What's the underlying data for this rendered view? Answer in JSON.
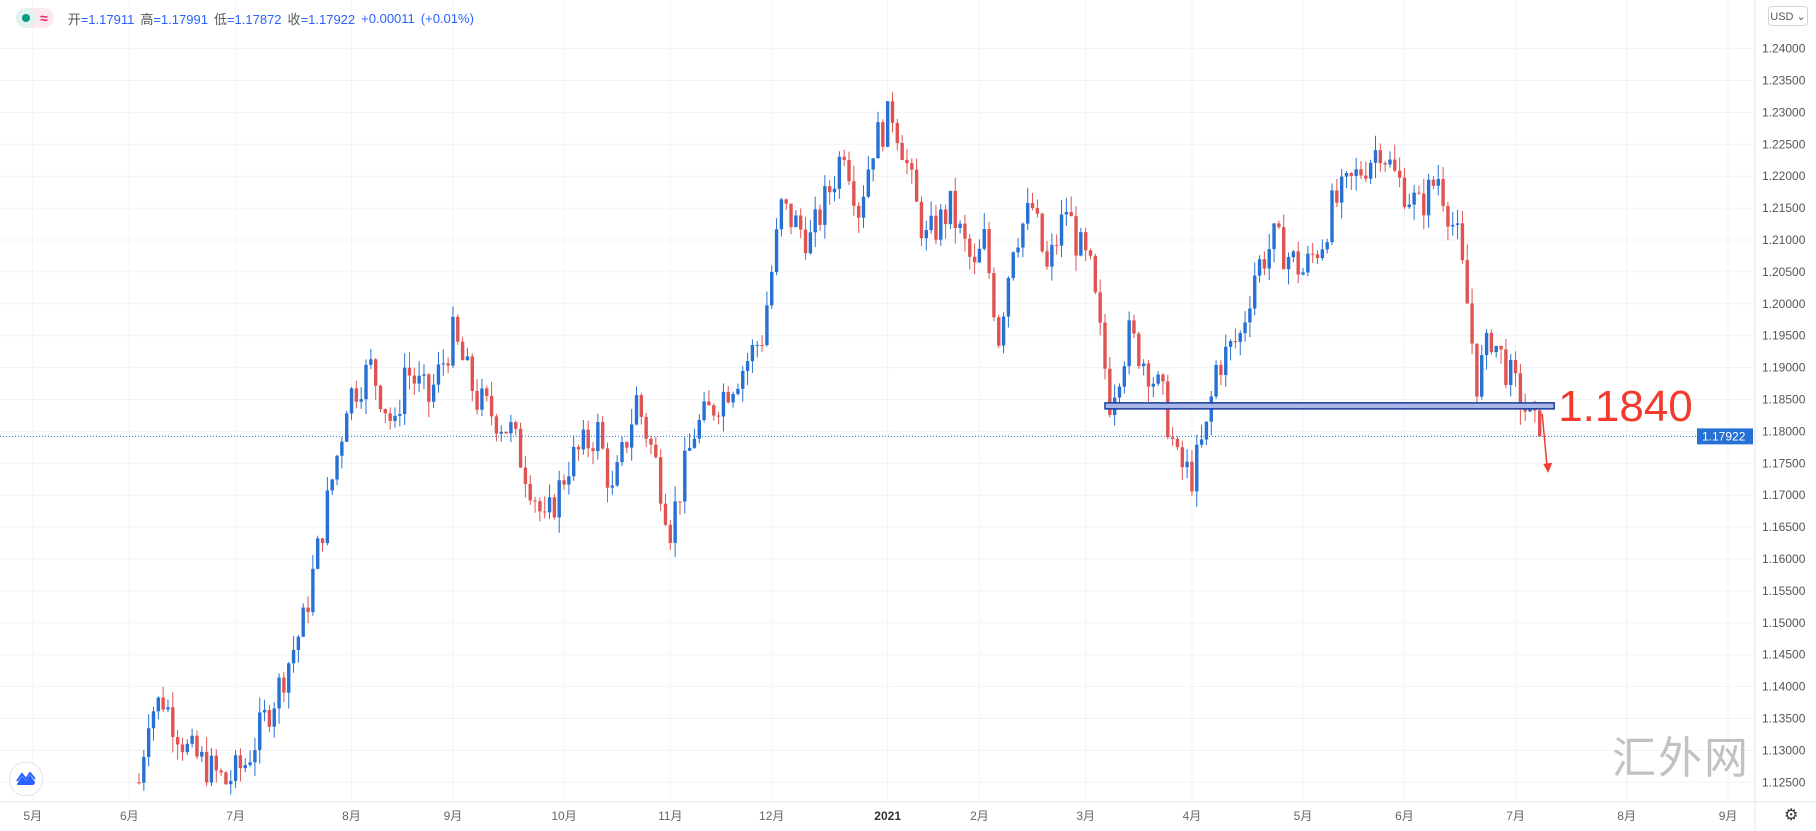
{
  "legend": {
    "items": [
      {
        "label": "开",
        "value": "=1.17911"
      },
      {
        "label": "高",
        "value": "=1.17991"
      },
      {
        "label": "低",
        "value": "=1.17872"
      },
      {
        "label": "收",
        "value": "=1.17922"
      }
    ],
    "change": "+0.00011",
    "change_pct": "(+0.01%)"
  },
  "currency_button": "USD ⌄",
  "watermark": "汇外网",
  "colors": {
    "up": "#2671d3",
    "down": "#e05353",
    "annotation": "#f23b2f",
    "grid": "#f0f3fa",
    "price_label": "#2671d3"
  },
  "chart_data": {
    "type": "candlestick",
    "title": "",
    "ylim": [
      1.1225,
      1.2425
    ],
    "y_ticks": [
      "1.24000",
      "1.23500",
      "1.23000",
      "1.22500",
      "1.22000",
      "1.21500",
      "1.21000",
      "1.20500",
      "1.20000",
      "1.19500",
      "1.19000",
      "1.18500",
      "1.18000",
      "1.17500",
      "1.17000",
      "1.16500",
      "1.16000",
      "1.15500",
      "1.15000",
      "1.14500",
      "1.14000",
      "1.13500",
      "1.13000",
      "1.12500"
    ],
    "x_ticks": [
      {
        "label": "5月",
        "day": -22
      },
      {
        "label": "6月",
        "day": -2
      },
      {
        "label": "7月",
        "day": 20
      },
      {
        "label": "8月",
        "day": 44
      },
      {
        "label": "9月",
        "day": 65
      },
      {
        "label": "10月",
        "day": 88
      },
      {
        "label": "11月",
        "day": 110
      },
      {
        "label": "12月",
        "day": 131
      },
      {
        "label": "2021",
        "day": 155
      },
      {
        "label": "2月",
        "day": 174
      },
      {
        "label": "3月",
        "day": 196
      },
      {
        "label": "4月",
        "day": 218
      },
      {
        "label": "5月",
        "day": 241
      },
      {
        "label": "6月",
        "day": 262
      },
      {
        "label": "7月",
        "day": 285
      },
      {
        "label": "8月",
        "day": 308
      },
      {
        "label": "9月",
        "day": 329
      }
    ],
    "close_path": [
      [
        0,
        1.125
      ],
      [
        2,
        1.136
      ],
      [
        5,
        1.138
      ],
      [
        10,
        1.13
      ],
      [
        18,
        1.125
      ],
      [
        22,
        1.128
      ],
      [
        29,
        1.14
      ],
      [
        34,
        1.15
      ],
      [
        38,
        1.165
      ],
      [
        42,
        1.18
      ],
      [
        43,
        1.185
      ],
      [
        48,
        1.19
      ],
      [
        53,
        1.18
      ],
      [
        55,
        1.19
      ],
      [
        60,
        1.185
      ],
      [
        65,
        1.195
      ],
      [
        70,
        1.185
      ],
      [
        77,
        1.18
      ],
      [
        82,
        1.17
      ],
      [
        84,
        1.165
      ],
      [
        89,
        1.175
      ],
      [
        95,
        1.18
      ],
      [
        98,
        1.17
      ],
      [
        103,
        1.185
      ],
      [
        107,
        1.175
      ],
      [
        110,
        1.165
      ],
      [
        115,
        1.18
      ],
      [
        125,
        1.19
      ],
      [
        129,
        1.195
      ],
      [
        133,
        1.215
      ],
      [
        139,
        1.21
      ],
      [
        144,
        1.22
      ],
      [
        146,
        1.225
      ],
      [
        149,
        1.215
      ],
      [
        152,
        1.225
      ],
      [
        156,
        1.23
      ],
      [
        158,
        1.225
      ],
      [
        161,
        1.215
      ],
      [
        163,
        1.21
      ],
      [
        168,
        1.215
      ],
      [
        173,
        1.205
      ],
      [
        175,
        1.21
      ],
      [
        178,
        1.195
      ],
      [
        181,
        1.21
      ],
      [
        185,
        1.215
      ],
      [
        188,
        1.205
      ],
      [
        192,
        1.215
      ],
      [
        194,
        1.21
      ],
      [
        197,
        1.205
      ],
      [
        200,
        1.19
      ],
      [
        201,
        1.185
      ],
      [
        205,
        1.195
      ],
      [
        209,
        1.19
      ],
      [
        212,
        1.185
      ],
      [
        215,
        1.175
      ],
      [
        218,
        1.173
      ],
      [
        221,
        1.18
      ],
      [
        223,
        1.19
      ],
      [
        228,
        1.195
      ],
      [
        231,
        1.205
      ],
      [
        235,
        1.21
      ],
      [
        241,
        1.205
      ],
      [
        245,
        1.21
      ],
      [
        247,
        1.215
      ],
      [
        252,
        1.22
      ],
      [
        257,
        1.225
      ],
      [
        260,
        1.22
      ],
      [
        265,
        1.215
      ],
      [
        269,
        1.22
      ],
      [
        273,
        1.21
      ],
      [
        275,
        1.2
      ],
      [
        277,
        1.188
      ],
      [
        280,
        1.195
      ],
      [
        283,
        1.19
      ],
      [
        286,
        1.185
      ],
      [
        290,
        1.17922
      ]
    ],
    "last_price": "1.17922",
    "annotations": {
      "support_zone": {
        "price": 1.184,
        "from_day": 200,
        "to_day": 293
      },
      "label": "1.1840",
      "arrow": "down"
    }
  }
}
